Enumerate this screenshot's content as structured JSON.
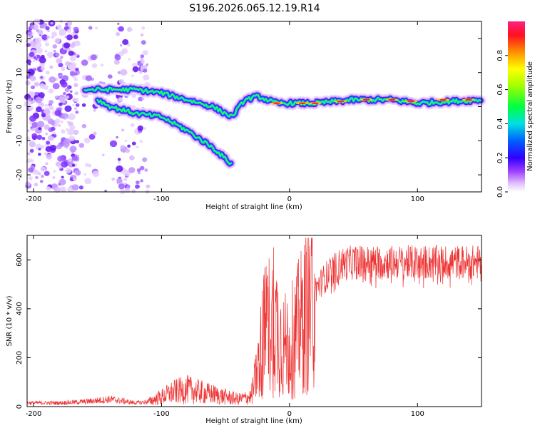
{
  "title": "S196.2026.065.12.19.R14",
  "chart_data": [
    {
      "type": "heatmap",
      "xlabel": "Height of straight line (km)",
      "ylabel": "Frequency (Hz)",
      "xlim": [
        -205,
        150
      ],
      "ylim": [
        -25,
        25
      ],
      "xticks": [
        -200,
        -100,
        0,
        100
      ],
      "yticks": [
        -20,
        -10,
        0,
        10,
        20
      ],
      "colorbar": {
        "label": "Normalized spectral amplitude",
        "range": [
          0,
          1
        ],
        "ticks": [
          "0.0",
          "0.2",
          "0.4",
          "0.6",
          "0.8"
        ]
      },
      "ridges": [
        {
          "name": "upper branch",
          "x": [
            -160,
            -140,
            -120,
            -100,
            -80,
            -60,
            -45,
            -35,
            -25,
            -10,
            0,
            20,
            50,
            80,
            100,
            150
          ],
          "y": [
            5,
            5,
            5,
            4,
            2,
            0,
            -3,
            2,
            3,
            1,
            1,
            1,
            2,
            2,
            1,
            2
          ]
        },
        {
          "name": "lower branch",
          "x": [
            -150,
            -140,
            -120,
            -100,
            -80,
            -60,
            -45
          ],
          "y": [
            2,
            0,
            -2,
            -3,
            -7,
            -12,
            -17
          ]
        }
      ]
    },
    {
      "type": "line",
      "xlabel": "Height of straight line (km)",
      "ylabel": "SNR (10 * v/v)",
      "xlim": [
        -205,
        150
      ],
      "ylim": [
        0,
        700
      ],
      "xticks": [
        -200,
        -100,
        0,
        100
      ],
      "yticks": [
        0,
        200,
        400,
        600
      ],
      "series": [
        {
          "name": "SNR",
          "color": "#ee3333",
          "x": [
            -205,
            -180,
            -160,
            -140,
            -120,
            -110,
            -100,
            -90,
            -80,
            -70,
            -60,
            -50,
            -40,
            -30,
            -25,
            -20,
            -15,
            -10,
            -5,
            0,
            5,
            10,
            15,
            20,
            30,
            40,
            50,
            60,
            80,
            100,
            120,
            150
          ],
          "y": [
            15,
            15,
            20,
            30,
            15,
            20,
            40,
            60,
            70,
            60,
            50,
            40,
            30,
            40,
            150,
            300,
            350,
            330,
            250,
            250,
            300,
            350,
            420,
            480,
            540,
            580,
            590,
            590,
            590,
            590,
            590,
            590
          ]
        }
      ]
    }
  ]
}
